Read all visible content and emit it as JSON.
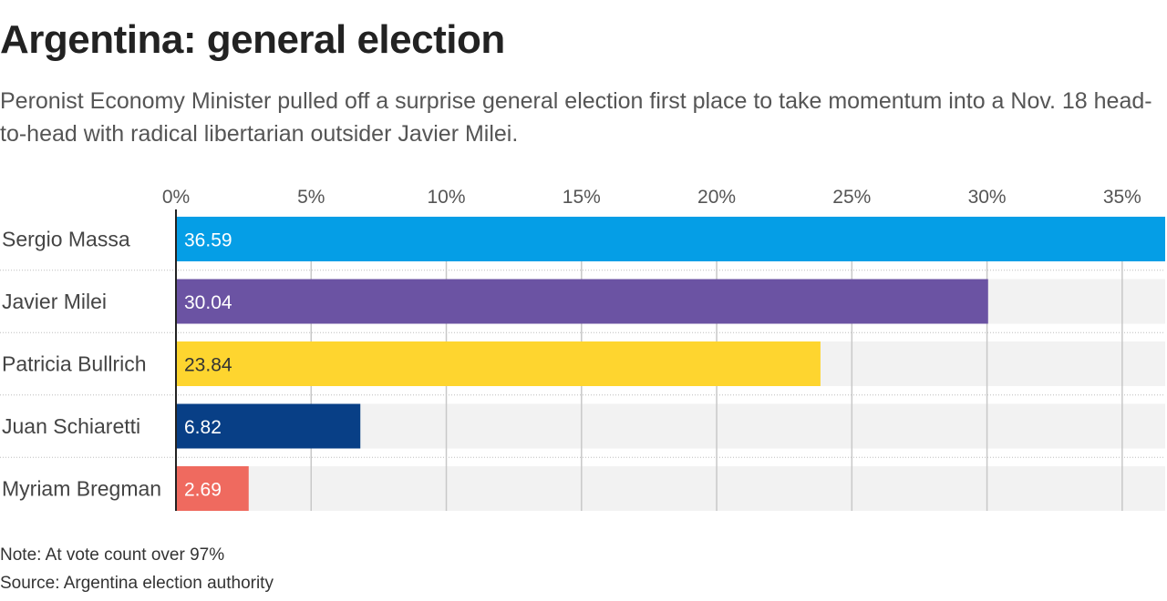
{
  "header": {
    "title": "Argentina: general election",
    "subtitle": "Peronist Economy Minister pulled off a surprise general election first place to take momentum into a Nov. 18 head-to-head with radical libertarian outsider Javier Milei."
  },
  "footer": {
    "note": "Note: At vote count over 97%",
    "source": "Source: Argentina election authority"
  },
  "chart_data": {
    "type": "bar",
    "orientation": "horizontal",
    "title": "",
    "xlabel": "",
    "ylabel": "",
    "xlim": [
      0,
      36.59
    ],
    "ticks": [
      0,
      5,
      10,
      15,
      20,
      25,
      30,
      35
    ],
    "tick_labels": [
      "0%",
      "5%",
      "10%",
      "15%",
      "20%",
      "25%",
      "30%",
      "35%"
    ],
    "grid": true,
    "legend": "none",
    "categories": [
      "Sergio Massa",
      "Javier Milei",
      "Patricia Bullrich",
      "Juan Schiaretti",
      "Myriam Bregman"
    ],
    "values": [
      36.59,
      30.04,
      23.84,
      6.82,
      2.69
    ],
    "value_labels": [
      "36.59",
      "30.04",
      "23.84",
      "6.82",
      "2.69"
    ],
    "colors": [
      "#059ee6",
      "#6b53a3",
      "#fed52f",
      "#083f86",
      "#ef6a5f"
    ],
    "label_colors": [
      "#ffffff",
      "#ffffff",
      "#333333",
      "#ffffff",
      "#ffffff"
    ],
    "track_color": "#f2f2f2",
    "grid_color": "#c8c8c8"
  }
}
